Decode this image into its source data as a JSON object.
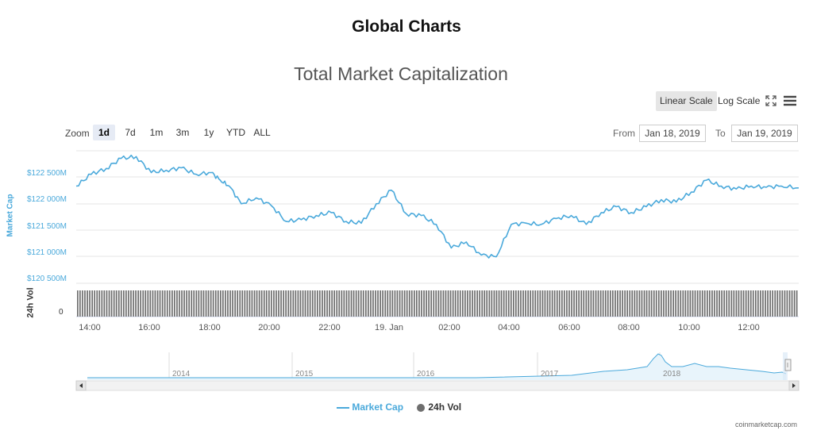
{
  "page_title": "Global Charts",
  "chart_title": "Total Market Capitalization",
  "scale_buttons": {
    "linear": "Linear Scale",
    "log": "Log Scale",
    "active": "linear"
  },
  "icons": {
    "fullscreen": "fullscreen-icon",
    "menu": "hamburger-menu-icon"
  },
  "zoom": {
    "label": "Zoom",
    "options": [
      "1d",
      "7d",
      "1m",
      "3m",
      "1y",
      "YTD",
      "ALL"
    ],
    "selected": "1d"
  },
  "range": {
    "from_label": "From",
    "from_value": "Jan 18, 2019",
    "to_label": "To",
    "to_value": "Jan 19, 2019"
  },
  "y_axis": {
    "title": "Market Cap",
    "ticks": [
      "$122 500M",
      "$122 000M",
      "$121 500M",
      "$121 000M",
      "$120 500M"
    ]
  },
  "volume_axis": {
    "title": "24h Vol",
    "zero_label": "0"
  },
  "x_axis": {
    "ticks": [
      "14:00",
      "16:00",
      "18:00",
      "20:00",
      "22:00",
      "19. Jan",
      "02:00",
      "04:00",
      "06:00",
      "08:00",
      "10:00",
      "12:00"
    ]
  },
  "navigator": {
    "years": [
      "2014",
      "2015",
      "2016",
      "2017",
      "2018"
    ]
  },
  "legend": {
    "market_cap": "Market Cap",
    "volume": "24h Vol"
  },
  "credit": "coinmarketcap.com",
  "colors": {
    "line": "#4aa9db",
    "volume": "#6e6e6e",
    "active_button": "#e6e6e6",
    "grid": "#e6e6e6"
  },
  "chart_data": {
    "type": "line",
    "title": "Total Market Capitalization",
    "ylabel": "Market Cap",
    "unit": "USD millions",
    "ylim": [
      120500,
      122750
    ],
    "x_range": [
      "Jan 18, 2019 13:30",
      "Jan 19, 2019 13:35"
    ],
    "grid": true,
    "legend_position": "bottom-center",
    "series": [
      {
        "name": "Market Cap",
        "x_hours": [
          13.5,
          14.0,
          14.5,
          15.0,
          15.5,
          16.0,
          16.5,
          17.0,
          17.5,
          18.0,
          18.3,
          18.6,
          19.0,
          19.5,
          20.0,
          20.5,
          21.0,
          21.5,
          22.0,
          22.5,
          23.0,
          23.5,
          24.0,
          24.5,
          25.0,
          25.5,
          26.0,
          26.5,
          27.0,
          27.5,
          28.0,
          28.5,
          29.0,
          29.5,
          30.0,
          30.5,
          31.0,
          31.5,
          32.0,
          32.5,
          33.0,
          33.5,
          34.0,
          34.5,
          35.0,
          35.5,
          36.0,
          36.5,
          37.0,
          37.58
        ],
        "values": [
          122150,
          122350,
          122450,
          122620,
          122650,
          122380,
          122420,
          122460,
          122350,
          122380,
          122250,
          122150,
          121850,
          121950,
          121820,
          121550,
          121580,
          121650,
          121700,
          121550,
          121520,
          121850,
          122080,
          121680,
          121650,
          121500,
          121100,
          121200,
          120980,
          120950,
          121500,
          121520,
          121500,
          121600,
          121650,
          121500,
          121700,
          121800,
          121700,
          121800,
          121920,
          121880,
          122050,
          122250,
          122150,
          122100,
          122150,
          122130,
          122150,
          122120
        ]
      },
      {
        "name": "24h Vol",
        "type": "column",
        "note": "roughly constant"
      }
    ]
  }
}
